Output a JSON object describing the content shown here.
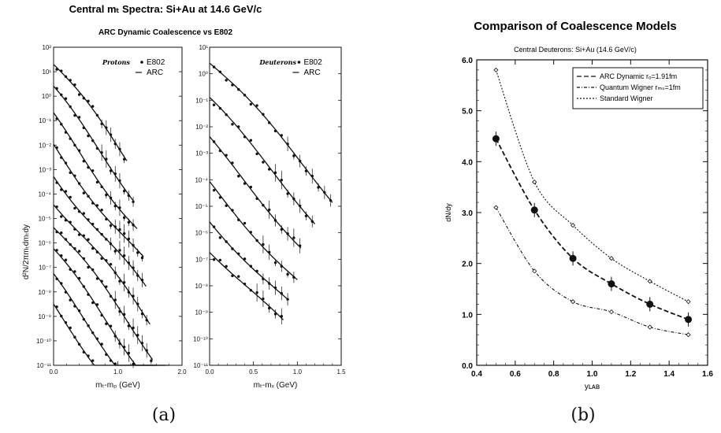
{
  "figure": {
    "label_a": "(a)",
    "label_b": "(b)"
  },
  "chart_data": [
    {
      "type": "scatter",
      "title": "Central mₜ Spectra: Si+Au at 14.6 GeV/c",
      "subtitle": "ARC Dynamic Coalescence vs  E802",
      "ylabel": "d²N/2πmₜdmₜdy",
      "yscale": "log",
      "yticks": [
        "10²",
        "10¹",
        "10⁰",
        "10⁻¹",
        "10⁻²",
        "10⁻³",
        "10⁻⁴",
        "10⁻⁵",
        "10⁻⁶",
        "10⁻⁷",
        "10⁻⁸",
        "10⁻⁹",
        "10⁻¹⁰",
        "10⁻¹¹"
      ],
      "panels": [
        {
          "name": "protons",
          "legend": {
            "title": "Protons",
            "data_label": "E802",
            "model_label": "ARC"
          },
          "xlabel": "mₜ-mₚ (GeV)",
          "xticks": [
            "0.0",
            "1.0",
            "2.0"
          ],
          "xlim": [
            0,
            2.0
          ],
          "ylim_exp": [
            -11,
            2
          ],
          "series": [
            {
              "a": 1.3,
              "s": 3.4,
              "xend": 1.15
            },
            {
              "a": 0.2,
              "s": 3.4,
              "xend": 1.25
            },
            {
              "a": -0.9,
              "s": 3.4,
              "xend": 1.3
            },
            {
              "a": -2.0,
              "s": 3.4,
              "xend": 1.4
            },
            {
              "a": -3.1,
              "s": 3.4,
              "xend": 1.45
            },
            {
              "a": -4.2,
              "s": 3.4,
              "xend": 1.5
            },
            {
              "a": -5.3,
              "s": 3.4,
              "xend": 1.55
            },
            {
              "a": -6.4,
              "s": 3.4,
              "xend": 1.6
            },
            {
              "a": -7.5,
              "s": 3.4,
              "xend": 1.75
            },
            {
              "a": -8.6,
              "s": 3.4,
              "xend": 1.8
            }
          ]
        },
        {
          "name": "deuterons",
          "legend": {
            "title": "Deuterons",
            "data_label": "E802",
            "model_label": "ARC"
          },
          "xlabel": "mₜ-mₓ (GeV)",
          "xticks": [
            "0.0",
            "0.5",
            "1.0",
            "1.5"
          ],
          "xlim": [
            0,
            1.5
          ],
          "ylim_exp": [
            -11,
            1
          ],
          "series": [
            {
              "a": 0.4,
              "s": 3.6,
              "xend": 1.4
            },
            {
              "a": -1.1,
              "s": 3.6,
              "xend": 1.2
            },
            {
              "a": -2.6,
              "s": 3.6,
              "xend": 1.05
            },
            {
              "a": -4.1,
              "s": 3.6,
              "xend": 1.0
            },
            {
              "a": -5.4,
              "s": 3.6,
              "xend": 0.9
            },
            {
              "a": -6.5,
              "s": 3.6,
              "xend": 0.85
            }
          ]
        }
      ]
    },
    {
      "type": "line",
      "title": "Comparison of Coalescence Models",
      "subtitle": "Central Deuterons: Si+Au (14.6 GeV/c)",
      "xlabel": "yʟᴀʙ",
      "ylabel": "dN/dy",
      "xlim": [
        0.4,
        1.6
      ],
      "ylim": [
        0.0,
        6.0
      ],
      "xticks": [
        "0.4",
        "0.6",
        "0.8",
        "1.0",
        "1.2",
        "1.4",
        "1.6"
      ],
      "yticks": [
        "0.0",
        "1.0",
        "2.0",
        "3.0",
        "4.0",
        "5.0",
        "6.0"
      ],
      "x": [
        0.5,
        0.7,
        0.9,
        1.1,
        1.3,
        1.5
      ],
      "series": [
        {
          "name": "ARC Dynamic  rₒ=1.91fm",
          "dash": "6,3",
          "values": [
            4.45,
            3.05,
            2.1,
            1.6,
            1.2,
            0.9
          ],
          "points": true
        },
        {
          "name": "Quantum Wigner  rₘₛ=1fm",
          "dash": "4,2,1,2",
          "values": [
            3.1,
            1.85,
            1.25,
            1.05,
            0.75,
            0.6
          ]
        },
        {
          "name": "Standard Wigner",
          "dash": "2,2",
          "values": [
            5.8,
            3.6,
            2.75,
            2.1,
            1.65,
            1.25
          ]
        }
      ]
    }
  ]
}
